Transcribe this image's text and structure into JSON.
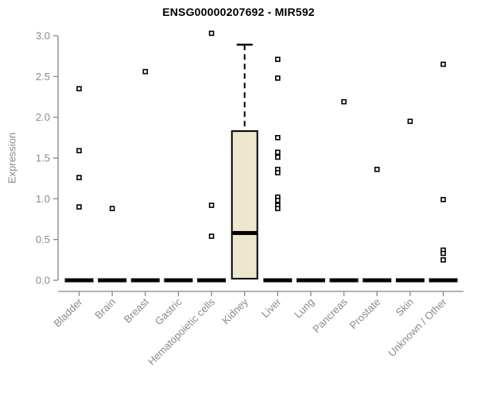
{
  "chart_data": {
    "type": "boxplot",
    "title": "ENSG00000207692 - MIR592",
    "ylabel": "Expression",
    "xlabel": "",
    "ylim": [
      0,
      3.0
    ],
    "ytick_labels": [
      "0.0",
      "0.5",
      "1.0",
      "1.5",
      "2.0",
      "2.5",
      "3.0"
    ],
    "grid": false,
    "legend": null,
    "categories": [
      "Bladder",
      "Brain",
      "Breast",
      "Gastric",
      "Hematopoietic cells",
      "Kidney",
      "Liver",
      "Lung",
      "Pancreas",
      "Prostate",
      "Skin",
      "Unknown / Other"
    ],
    "boxes": [
      {
        "category": "Bladder",
        "q1": 0,
        "median": 0,
        "q3": 0,
        "whisker_low": 0,
        "whisker_high": 0,
        "points": [
          2.35,
          1.59,
          1.26,
          0.9
        ]
      },
      {
        "category": "Brain",
        "q1": 0,
        "median": 0,
        "q3": 0,
        "whisker_low": 0,
        "whisker_high": 0,
        "points": [
          0.88
        ]
      },
      {
        "category": "Breast",
        "q1": 0,
        "median": 0,
        "q3": 0,
        "whisker_low": 0,
        "whisker_high": 0,
        "points": [
          2.56
        ]
      },
      {
        "category": "Gastric",
        "q1": 0,
        "median": 0,
        "q3": 0,
        "whisker_low": 0,
        "whisker_high": 0,
        "points": []
      },
      {
        "category": "Hematopoietic cells",
        "q1": 0,
        "median": 0,
        "q3": 0,
        "whisker_low": 0,
        "whisker_high": 0,
        "points": [
          3.03,
          0.92,
          0.54
        ]
      },
      {
        "category": "Kidney",
        "q1": 0.02,
        "median": 0.58,
        "q3": 1.83,
        "whisker_low": 0.02,
        "whisker_high": 2.89,
        "points": []
      },
      {
        "category": "Liver",
        "q1": 0,
        "median": 0,
        "q3": 0,
        "whisker_low": 0,
        "whisker_high": 0,
        "points": [
          2.71,
          2.48,
          1.75,
          1.57,
          1.51,
          1.36,
          1.32,
          1.02,
          0.98,
          0.92,
          0.88
        ]
      },
      {
        "category": "Lung",
        "q1": 0,
        "median": 0,
        "q3": 0,
        "whisker_low": 0,
        "whisker_high": 0,
        "points": []
      },
      {
        "category": "Pancreas",
        "q1": 0,
        "median": 0,
        "q3": 0,
        "whisker_low": 0,
        "whisker_high": 0,
        "points": [
          2.19
        ]
      },
      {
        "category": "Prostate",
        "q1": 0,
        "median": 0,
        "q3": 0,
        "whisker_low": 0,
        "whisker_high": 0,
        "points": [
          1.36
        ]
      },
      {
        "category": "Skin",
        "q1": 0,
        "median": 0,
        "q3": 0,
        "whisker_low": 0,
        "whisker_high": 0,
        "points": [
          1.95
        ]
      },
      {
        "category": "Unknown / Other",
        "q1": 0,
        "median": 0,
        "q3": 0,
        "whisker_low": 0,
        "whisker_high": 0,
        "points": [
          2.65,
          0.99,
          0.37,
          0.33,
          0.25
        ]
      }
    ],
    "colors": {
      "box_fill": "#EDE8CD",
      "box_border": "#000000",
      "points": "#000000",
      "axis": "#878787",
      "text": "#8a8a8a",
      "title": "#000000",
      "background": "#ffffff"
    }
  }
}
